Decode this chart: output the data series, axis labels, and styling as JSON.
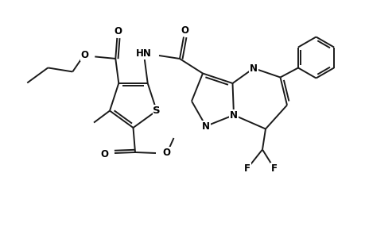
{
  "bg_color": "#ffffff",
  "line_color": "#1a1a1a",
  "line_width": 1.4,
  "font_size": 8.5,
  "figsize": [
    4.6,
    3.0
  ],
  "dpi": 100,
  "xlim": [
    0,
    9.2
  ],
  "ylim": [
    0,
    6.0
  ]
}
